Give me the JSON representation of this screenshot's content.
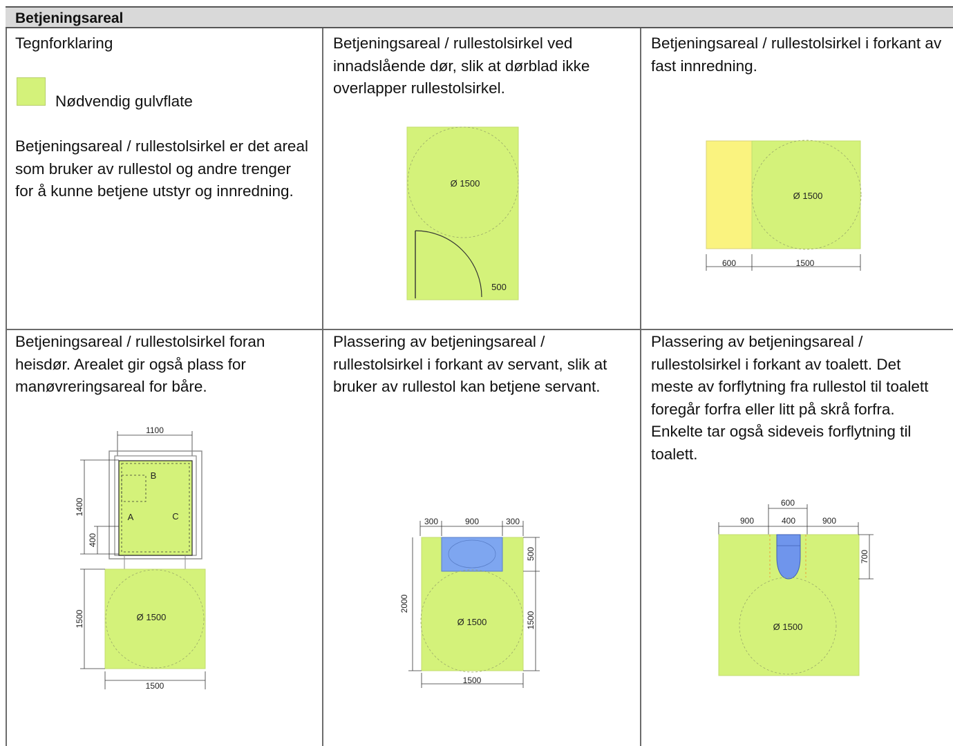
{
  "header": {
    "title": "Betjeningsareal"
  },
  "cells": {
    "legend": {
      "title": "Tegnforklaring",
      "swatch_label": "Nødvendig gulvflate",
      "swatch_color": "#d4f27a",
      "description": "Betjeningsareal / rullestolsirkel er det areal som bruker av rullestol og andre trenger for å kunne betjene utstyr og innredning."
    },
    "door": {
      "text": "Betjeningsareal / rullestolsirkel ved innadslående dør, slik at dørblad ikke overlapper rullestolsirkel.",
      "circle_label": "Ø 1500",
      "door_label": "500"
    },
    "fixed": {
      "text": "Betjeningsareal / rullestolsirkel i forkant av fast innredning.",
      "circle_label": "Ø 1500",
      "dim_left": "600",
      "dim_right": "1500",
      "fixture_color": "#faf37f"
    },
    "lift": {
      "text": "Betjeningsareal / rullestolsirkel foran heisdør. Arealet gir også plass for manøvreringsareal for båre.",
      "dim_top": "1100",
      "dim_left_upper": "1400",
      "dim_left_small": "400",
      "dim_left_lower": "1500",
      "dim_bottom": "1500",
      "label_a": "A",
      "label_b": "B",
      "label_c": "C",
      "circle_label": "Ø 1500"
    },
    "sink": {
      "text": "Plassering av betjeningsareal / rullestolsirkel i forkant av servant, slik at bruker av rullestol kan betjene servant.",
      "dim_top_left": "300",
      "dim_top_mid": "900",
      "dim_top_right": "300",
      "dim_left": "2000",
      "dim_right_upper": "500",
      "dim_right_lower": "1500",
      "dim_bottom": "1500",
      "circle_label": "Ø 1500",
      "fixture_color": "#7ea6f0"
    },
    "toilet": {
      "text": "Plassering av betjeningsareal / rullestolsirkel i forkant av toalett. Det meste av forflytning fra rullestol til toalett foregår forfra eller litt på skrå forfra. Enkelte tar også sideveis forflytning til toalett.",
      "dim_top": "600",
      "dim_left": "900",
      "dim_mid": "400",
      "dim_right": "900",
      "dim_side": "700",
      "circle_label": "Ø 1500",
      "fixture_color": "#6f95ec"
    }
  }
}
